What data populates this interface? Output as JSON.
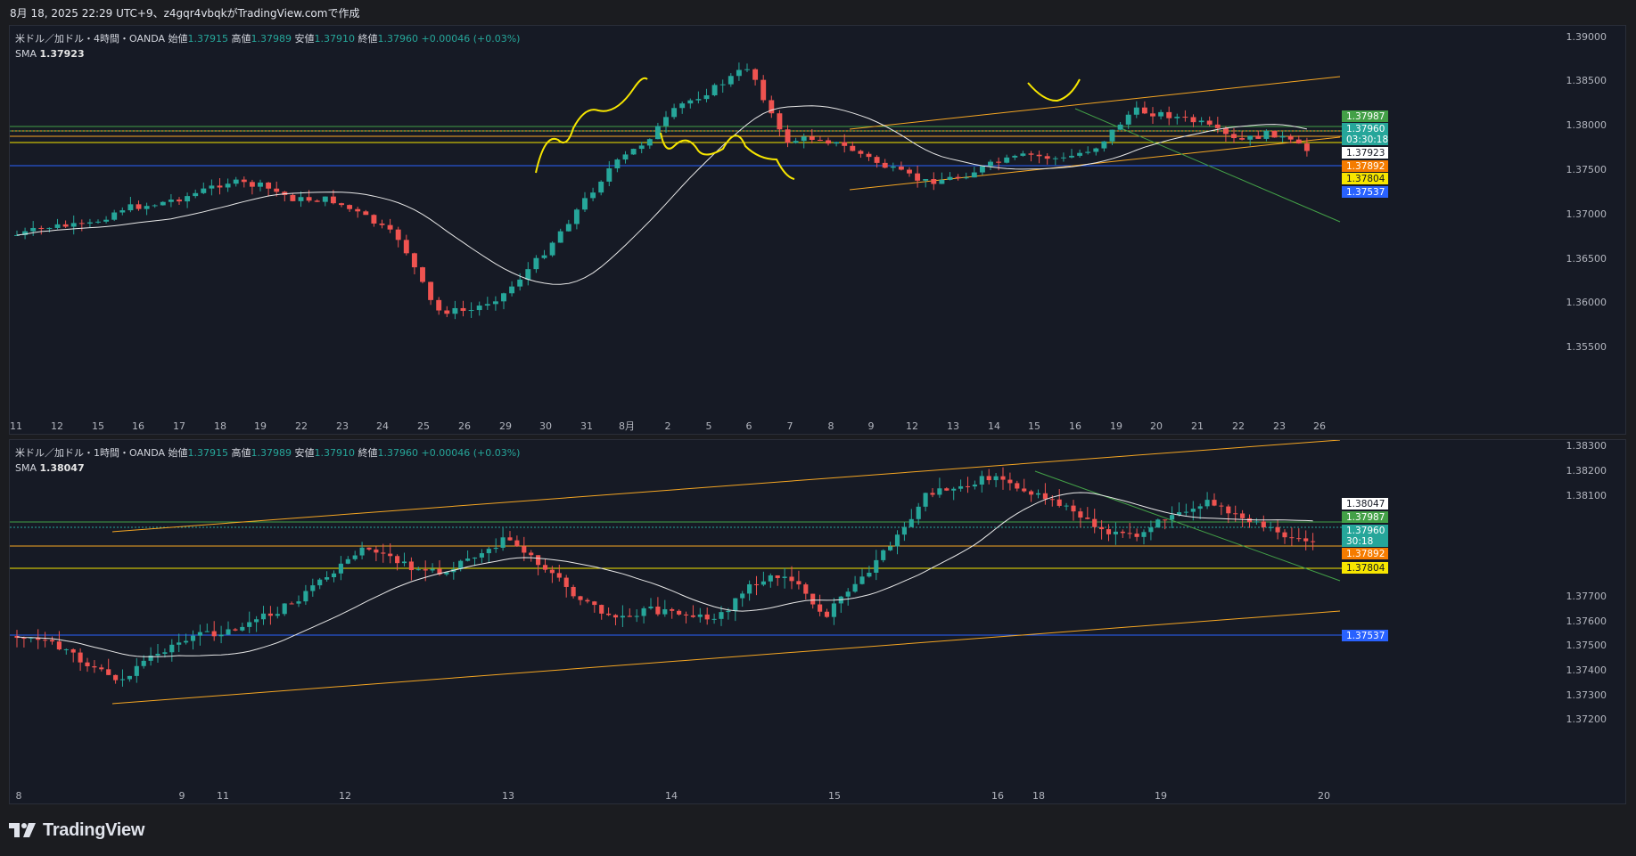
{
  "header": {
    "title": "8月 18, 2025 22:29 UTC+9、z4gqr4vbqkがTradingView.comで作成"
  },
  "colors": {
    "up": "#26a69a",
    "down": "#ef5350",
    "background": "#161a25",
    "orange": "#f5a623",
    "yellow": "#f7e600",
    "blue": "#2962ff",
    "green": "#43a047"
  },
  "panes": [
    {
      "id": "4h",
      "legend": {
        "symbol": "米ドル／加ドル・4時間・OANDA",
        "open_label": "始値",
        "open": "1.37915",
        "high_label": "高値",
        "high": "1.37989",
        "low_label": "安値",
        "low": "1.37910",
        "close_label": "終値",
        "close": "1.37960",
        "change": "+0.00046 (+0.03%)",
        "sma_label": "SMA",
        "sma_value": "1.37923"
      },
      "y_ticks": [
        "1.39000",
        "1.38500",
        "1.38000",
        "1.37500",
        "1.37000",
        "1.36500",
        "1.36000",
        "1.35500"
      ],
      "x_ticks": [
        "11",
        "12",
        "15",
        "16",
        "17",
        "18",
        "19",
        "22",
        "23",
        "24",
        "25",
        "26",
        "29",
        "30",
        "31",
        "8月",
        "2",
        "5",
        "6",
        "7",
        "8",
        "9",
        "12",
        "13",
        "14",
        "15",
        "16",
        "19",
        "20",
        "21",
        "22",
        "23",
        "26"
      ],
      "price_labels": [
        {
          "text": "1.37987",
          "color": "#43a047"
        },
        {
          "text": "1.37960",
          "color": "#26a69a"
        },
        {
          "text": "03:30:18",
          "color": "#26a69a"
        },
        {
          "text": "1.37923",
          "color": "#ffffff"
        },
        {
          "text": "1.37892",
          "color": "#f57c00"
        },
        {
          "text": "1.37804",
          "color": "#f7e600"
        },
        {
          "text": "1.37537",
          "color": "#2962ff"
        }
      ]
    },
    {
      "id": "1h",
      "legend": {
        "symbol": "米ドル／加ドル・1時間・OANDA",
        "open_label": "始値",
        "open": "1.37915",
        "high_label": "高値",
        "high": "1.37989",
        "low_label": "安値",
        "low": "1.37910",
        "close_label": "終値",
        "close": "1.37960",
        "change": "+0.00046 (+0.03%)",
        "sma_label": "SMA",
        "sma_value": "1.38047"
      },
      "y_ticks": [
        "1.38300",
        "1.38200",
        "1.38100",
        "1.37700",
        "1.37600",
        "1.37500",
        "1.37400",
        "1.37300",
        "1.37200"
      ],
      "x_ticks": [
        "8",
        "9",
        "11",
        "12",
        "13",
        "14",
        "15",
        "16",
        "18",
        "19",
        "20"
      ],
      "price_labels": [
        {
          "text": "1.38047",
          "color": "#ffffff"
        },
        {
          "text": "1.37987",
          "color": "#43a047"
        },
        {
          "text": "1.37960",
          "color": "#26a69a"
        },
        {
          "text": "30:18",
          "color": "#26a69a"
        },
        {
          "text": "1.37892",
          "color": "#f57c00"
        },
        {
          "text": "1.37804",
          "color": "#f7e600"
        },
        {
          "text": "1.37537",
          "color": "#2962ff"
        }
      ]
    }
  ],
  "footer": {
    "brand": "TradingView"
  }
}
